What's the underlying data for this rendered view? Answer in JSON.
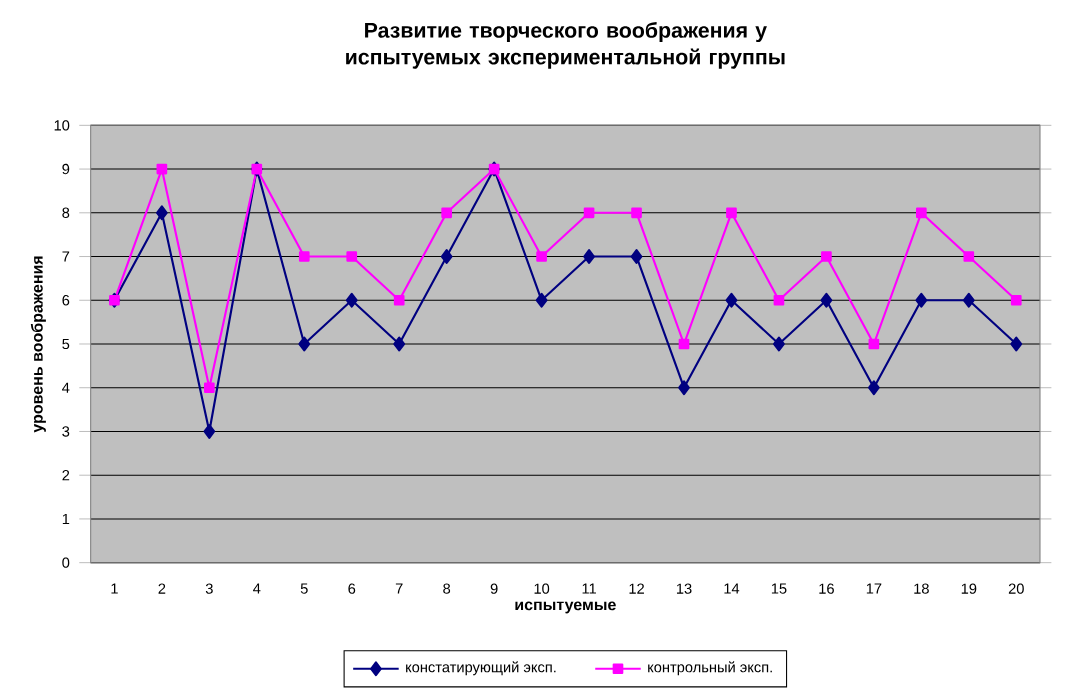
{
  "chart_data": {
    "type": "line",
    "title": "Развитие творческого воображения у испытуемых экспериментальной группы",
    "xlabel": "испытуемые",
    "ylabel": "уровень воображения",
    "categories": [
      "1",
      "2",
      "3",
      "4",
      "5",
      "6",
      "7",
      "8",
      "9",
      "10",
      "11",
      "12",
      "13",
      "14",
      "15",
      "16",
      "17",
      "18",
      "19",
      "20"
    ],
    "series": [
      {
        "name": "констатирующий эксп.",
        "color": "#000080",
        "marker": "diamond",
        "values": [
          6,
          8,
          3,
          9,
          5,
          6,
          5,
          7,
          9,
          6,
          7,
          7,
          4,
          6,
          5,
          6,
          4,
          6,
          6,
          5
        ]
      },
      {
        "name": "контрольный эксп.",
        "color": "#ff00ff",
        "marker": "square",
        "values": [
          6,
          9,
          4,
          9,
          7,
          7,
          6,
          8,
          9,
          7,
          8,
          8,
          5,
          8,
          6,
          7,
          5,
          8,
          7,
          6
        ]
      }
    ],
    "ylim": [
      0,
      10
    ],
    "yticks": [
      0,
      1,
      2,
      3,
      4,
      5,
      6,
      7,
      8,
      9,
      10
    ],
    "grid": "y",
    "legend": "bottom",
    "line_style": "solid"
  }
}
